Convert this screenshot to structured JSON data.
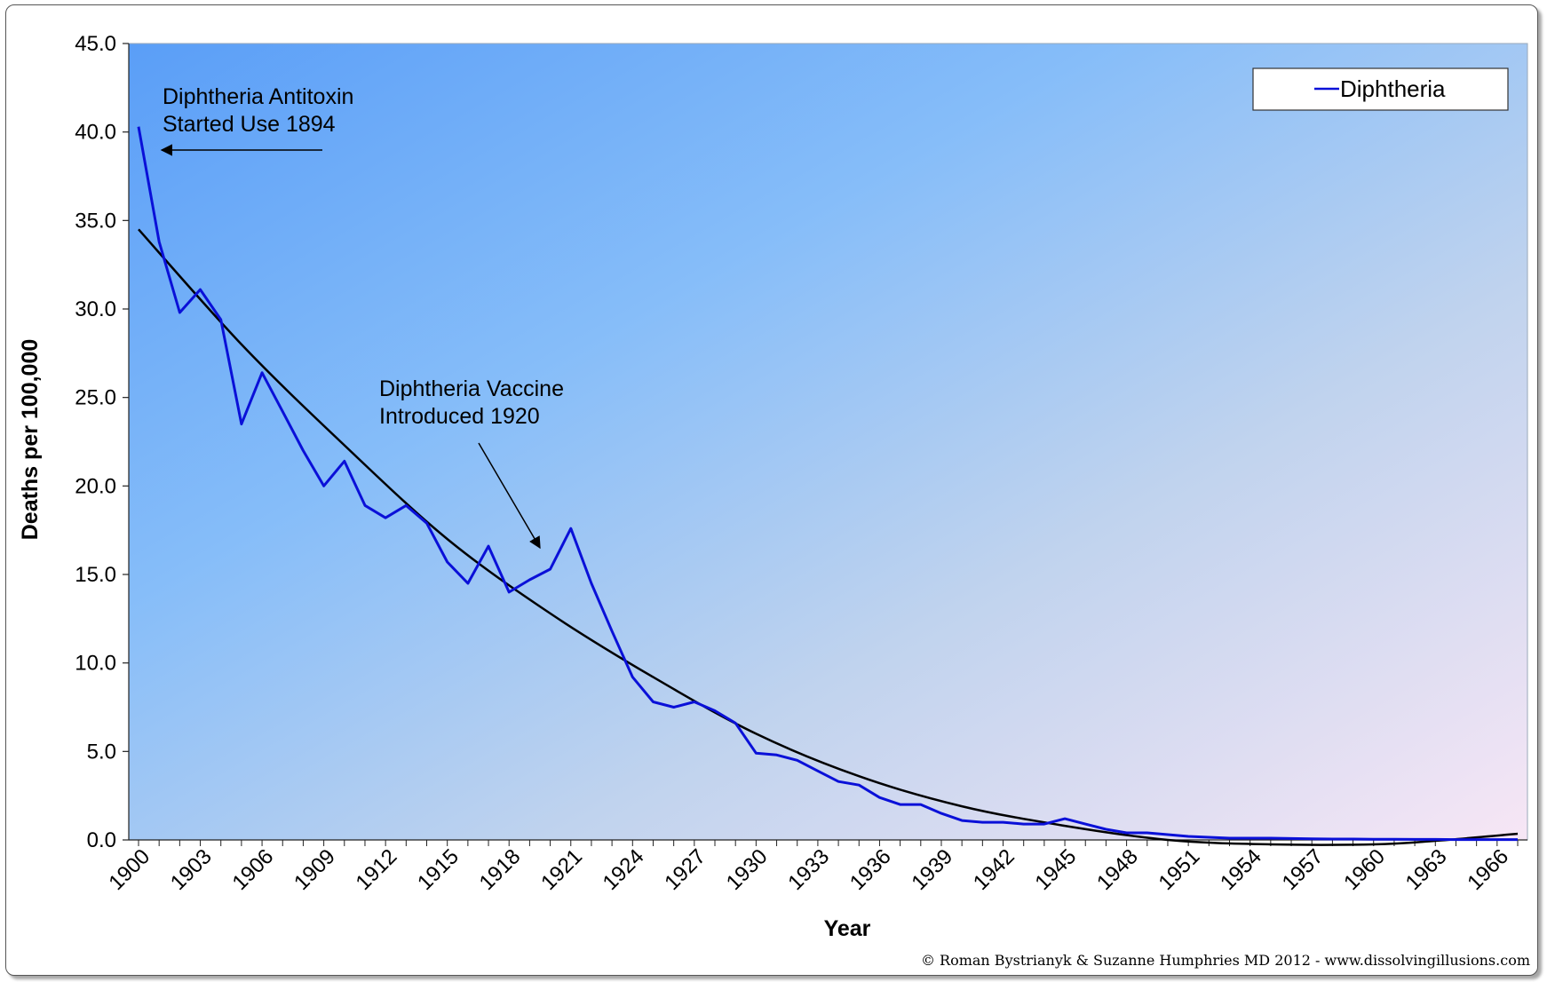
{
  "chart_data": {
    "type": "line",
    "xlabel": "Year",
    "ylabel": "Deaths per 100,000",
    "ylim": [
      0,
      45
    ],
    "yticks": [
      "0.0",
      "5.0",
      "10.0",
      "15.0",
      "20.0",
      "25.0",
      "30.0",
      "35.0",
      "40.0",
      "45.0"
    ],
    "xlim": [
      1900,
      1968
    ],
    "xticks": [
      "1900",
      "1903",
      "1906",
      "1909",
      "1912",
      "1915",
      "1918",
      "1921",
      "1924",
      "1927",
      "1930",
      "1933",
      "1936",
      "1939",
      "1942",
      "1945",
      "1948",
      "1951",
      "1954",
      "1957",
      "1960",
      "1963",
      "1966"
    ],
    "legend": "top-right",
    "grid": false,
    "series": [
      {
        "name": "Diphtheria",
        "color": "#0a10d8",
        "x": [
          1900,
          1901,
          1902,
          1903,
          1904,
          1905,
          1906,
          1907,
          1908,
          1909,
          1910,
          1911,
          1912,
          1913,
          1914,
          1915,
          1916,
          1917,
          1918,
          1919,
          1920,
          1921,
          1922,
          1923,
          1924,
          1925,
          1926,
          1927,
          1928,
          1929,
          1930,
          1931,
          1932,
          1933,
          1934,
          1935,
          1936,
          1937,
          1938,
          1939,
          1940,
          1941,
          1942,
          1943,
          1944,
          1945,
          1946,
          1947,
          1948,
          1949,
          1950,
          1951,
          1952,
          1953,
          1954,
          1955,
          1956,
          1957,
          1958,
          1959,
          1960,
          1961,
          1962,
          1963,
          1964,
          1965,
          1966,
          1967
        ],
        "values": [
          40.3,
          33.8,
          29.8,
          31.1,
          29.4,
          23.5,
          26.4,
          24.2,
          22.0,
          20.0,
          21.4,
          18.9,
          18.2,
          18.9,
          17.9,
          15.7,
          14.5,
          16.6,
          14.0,
          14.7,
          15.3,
          17.6,
          14.5,
          11.8,
          9.2,
          7.8,
          7.5,
          7.8,
          7.3,
          6.6,
          4.9,
          4.8,
          4.5,
          3.9,
          3.3,
          3.1,
          2.4,
          2.0,
          2.0,
          1.5,
          1.1,
          1.0,
          1.0,
          0.9,
          0.9,
          1.2,
          0.9,
          0.6,
          0.4,
          0.4,
          0.3,
          0.2,
          0.15,
          0.1,
          0.1,
          0.1,
          0.08,
          0.06,
          0.05,
          0.05,
          0.04,
          0.04,
          0.03,
          0.03,
          0.02,
          0.02,
          0.02,
          0.02
        ]
      }
    ],
    "trendline": {
      "color": "#000000",
      "x": [
        1900,
        1905,
        1910,
        1915,
        1920,
        1925,
        1930,
        1935,
        1940,
        1945,
        1950,
        1955,
        1960,
        1963,
        1967
      ],
      "values": [
        34.5,
        28.0,
        22.3,
        17.0,
        12.8,
        9.2,
        6.0,
        3.6,
        1.9,
        0.8,
        0.0,
        -0.25,
        -0.25,
        -0.05,
        0.35
      ]
    },
    "annotations": [
      {
        "lines": [
          "Diphtheria Antitoxin",
          "Started Use 1894"
        ]
      },
      {
        "lines": [
          "Diphtheria Vaccine",
          "Introduced 1920"
        ]
      }
    ],
    "credit": "© Roman Bystrianyk & Suzanne Humphries MD 2012 - www.dissolvingillusions.com"
  }
}
